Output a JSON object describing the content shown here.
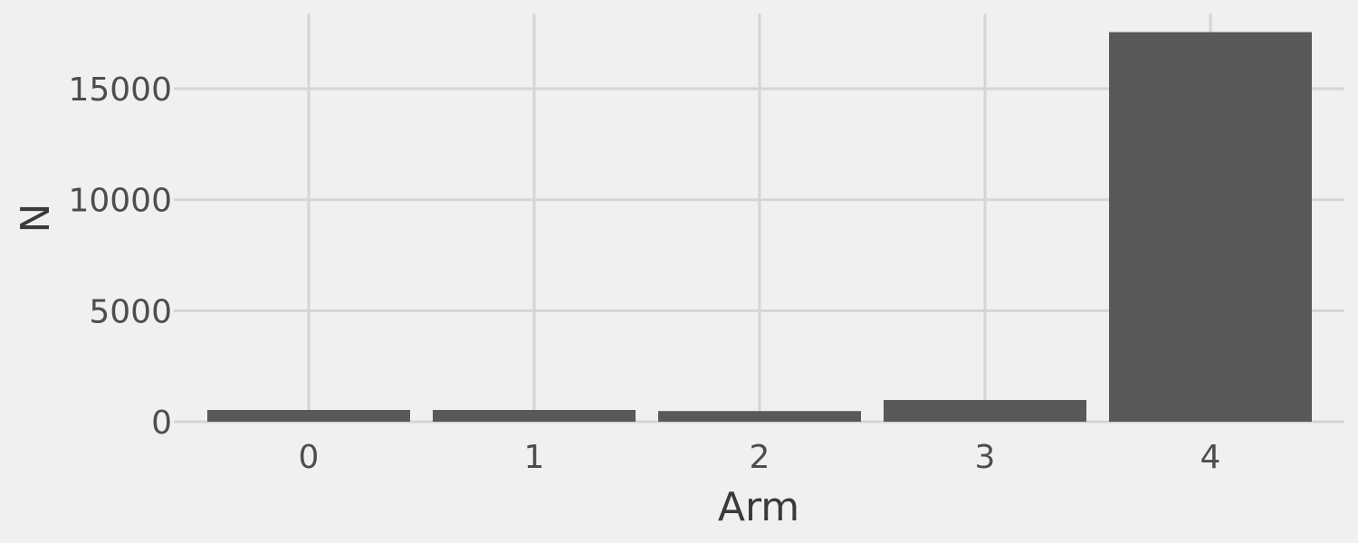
{
  "chart_data": {
    "type": "bar",
    "title": "",
    "xlabel": "Arm",
    "ylabel": "N",
    "categories": [
      "0",
      "1",
      "2",
      "3",
      "4"
    ],
    "values": [
      530,
      530,
      480,
      980,
      17550
    ],
    "ylim": [
      0,
      18400
    ],
    "yticks": [
      0,
      5000,
      10000,
      15000
    ],
    "ytick_labels": [
      "0",
      "5000",
      "10000",
      "15000"
    ],
    "grid": true,
    "colors": {
      "background": "#f0f0f0",
      "grid": "#d5d5d5",
      "bar": "#595959",
      "tick_text": "#4d4d4d",
      "axis_title": "#3a3a3a"
    }
  }
}
